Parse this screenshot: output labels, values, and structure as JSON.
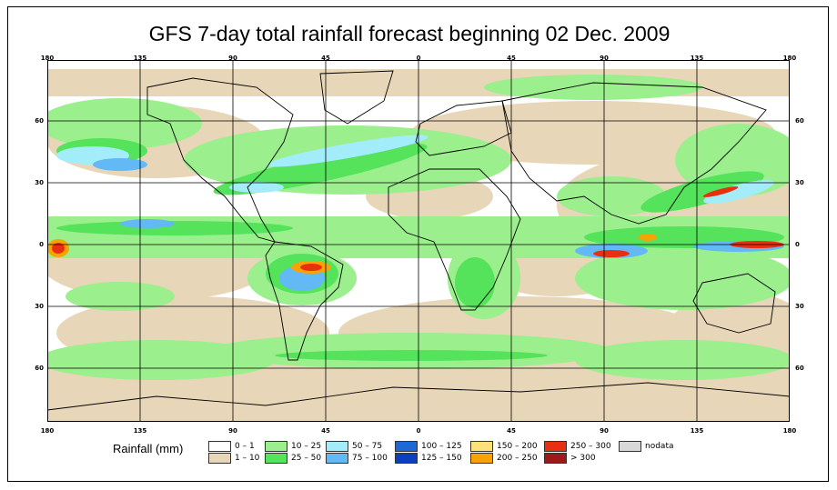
{
  "title": "GFS 7-day total rainfall forecast beginning 02 Dec. 2009",
  "axes": {
    "longitude_labels": [
      "180",
      "135",
      "90",
      "45",
      "0",
      "45",
      "90",
      "135",
      "180"
    ],
    "latitude_labels": [
      "60",
      "30",
      "0",
      "30",
      "60"
    ]
  },
  "legend": {
    "title": "Rainfall (mm)",
    "items": [
      {
        "label": "0 – 1",
        "color": "#ffffff"
      },
      {
        "label": "1 – 10",
        "color": "#e8d6b8"
      },
      {
        "label": "10 – 25",
        "color": "#9bef8c"
      },
      {
        "label": "25 – 50",
        "color": "#55e35c"
      },
      {
        "label": "50 – 75",
        "color": "#a3ecfa"
      },
      {
        "label": "75 – 100",
        "color": "#62b9f5"
      },
      {
        "label": "100 – 125",
        "color": "#1c68d6"
      },
      {
        "label": "125 – 150",
        "color": "#0a3fc0"
      },
      {
        "label": "150 – 200",
        "color": "#fde27a"
      },
      {
        "label": "200 – 250",
        "color": "#f9a203"
      },
      {
        "label": "250 – 300",
        "color": "#e83010"
      },
      {
        "label": "> 300",
        "color": "#9e1a1a"
      },
      {
        "label": "nodata",
        "color": "#d8d8d8"
      }
    ]
  },
  "colors": {
    "ocean_dry": "#ffffff",
    "light_rain": "#e8d6b8",
    "moderate": "#9bef8c",
    "heavy": "#55e35c",
    "very_heavy": "#a3ecfa",
    "blue": "#62b9f5",
    "deep_blue": "#1c68d6",
    "red": "#e83010",
    "coast": "#000000"
  }
}
